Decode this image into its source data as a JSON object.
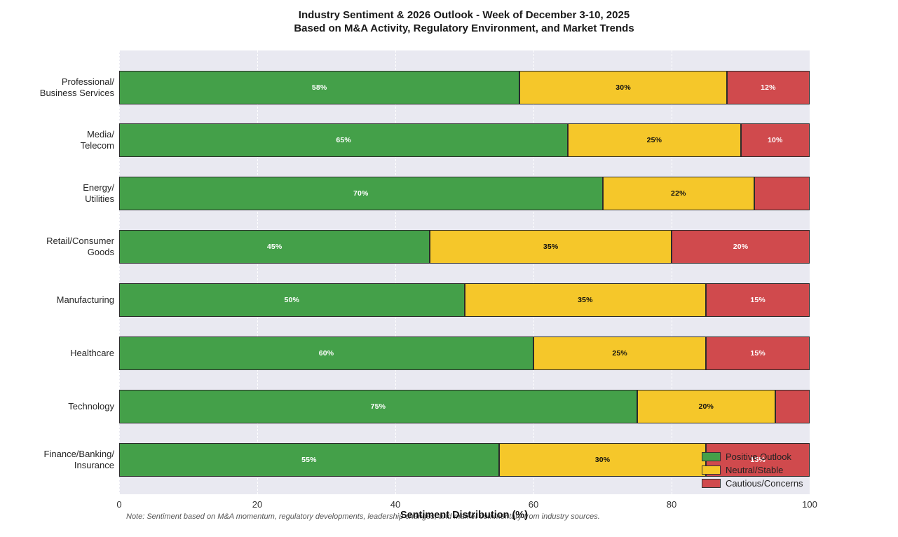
{
  "chart_data": {
    "type": "bar",
    "variant": "horizontal_stacked",
    "title": "Industry Sentiment & 2026 Outlook - Week of December 3-10, 2025",
    "subtitle": "Based on M&A Activity, Regulatory Environment, and Market Trends",
    "categories": [
      "Professional/\nBusiness Services",
      "Media/\nTelecom",
      "Energy/\nUtilities",
      "Retail/Consumer\nGoods",
      "Manufacturing",
      "Healthcare",
      "Technology",
      "Finance/Banking/\nInsurance"
    ],
    "series": [
      {
        "name": "Positive Outlook",
        "color": "#44a049",
        "label_color": "#ffffff",
        "values": [
          58,
          65,
          70,
          45,
          50,
          60,
          75,
          55
        ]
      },
      {
        "name": "Neutral/Stable",
        "color": "#f5c72a",
        "label_color": "#111111",
        "values": [
          30,
          25,
          22,
          35,
          35,
          25,
          20,
          30
        ]
      },
      {
        "name": "Cautious/Concerns",
        "color": "#d04a4d",
        "label_color": "#ffffff",
        "values": [
          12,
          10,
          8,
          20,
          15,
          15,
          5,
          15
        ]
      }
    ],
    "xlabel": "Sentiment Distribution (%)",
    "xticks": [
      0,
      20,
      40,
      60,
      80,
      100
    ],
    "xlim": [
      0,
      100
    ],
    "grid": "vertical white dashed lines at major ticks",
    "legend_position": "lower right, overlapping last bar, transparent background",
    "value_label_format": "{value}%",
    "value_label_min": 10,
    "plot_background": "#e9e9f1",
    "bar_edge_color": "#2b2b2b",
    "note": "Note: Sentiment based on M&A momentum, regulatory developments, leadership changes, and market commentary from industry sources."
  }
}
